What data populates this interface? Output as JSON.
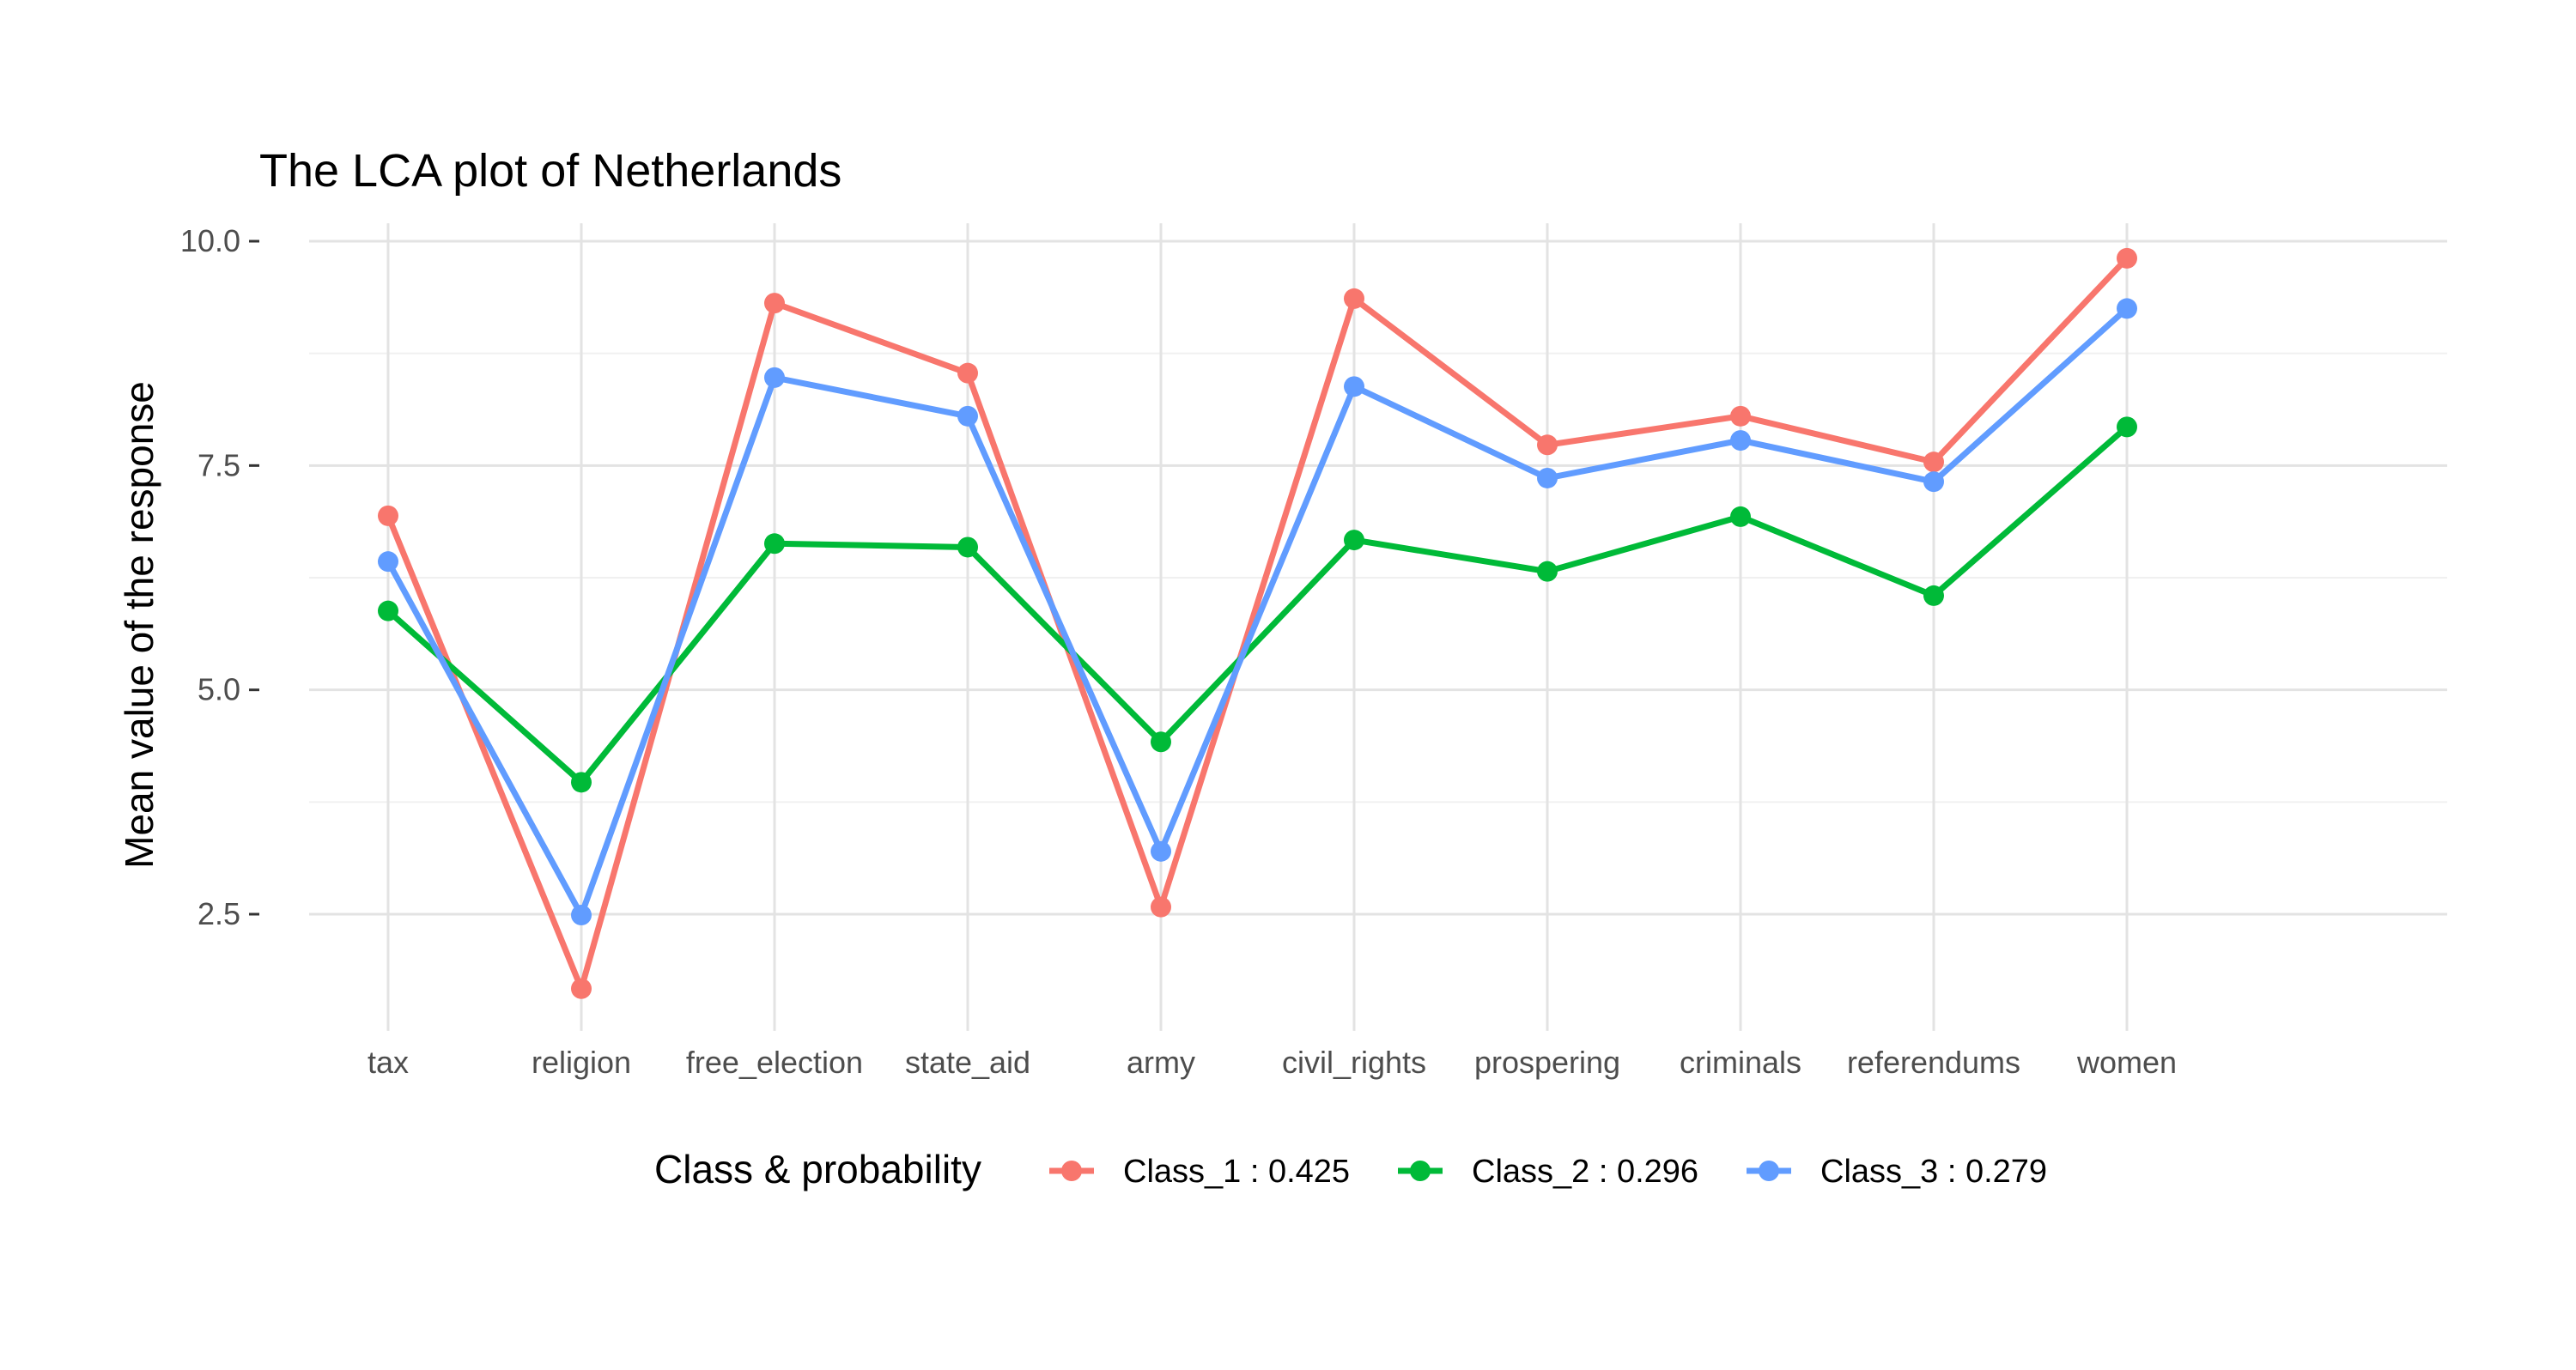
{
  "chart_data": {
    "type": "line",
    "title": "The LCA plot of Netherlands",
    "xlabel": "",
    "ylabel": "Mean value of the response",
    "categories": [
      "tax",
      "religion",
      "free_election",
      "state_aid",
      "army",
      "civil_rights",
      "prospering",
      "criminals",
      "referendums",
      "women"
    ],
    "y_ticks": [
      2.5,
      5.0,
      7.5,
      10.0
    ],
    "y_tick_labels": [
      "2.5",
      "5.0",
      "7.5",
      "10.0"
    ],
    "ylim": [
      1.2,
      10.2
    ],
    "grid": true,
    "legend": {
      "title": "Class & probability",
      "position": "bottom"
    },
    "series": [
      {
        "name": "Class_1 : 0.425",
        "color": "#F8766D",
        "values": [
          6.94,
          1.67,
          9.31,
          8.53,
          2.58,
          9.36,
          7.73,
          8.05,
          7.54,
          9.81
        ]
      },
      {
        "name": "Class_2 : 0.296",
        "color": "#00BA38",
        "values": [
          5.88,
          3.97,
          6.63,
          6.59,
          4.42,
          6.67,
          6.32,
          6.93,
          6.05,
          7.93
        ]
      },
      {
        "name": "Class_3 : 0.279",
        "color": "#619CFF",
        "values": [
          6.43,
          2.49,
          8.48,
          8.05,
          3.2,
          8.38,
          7.36,
          7.78,
          7.32,
          9.25
        ]
      }
    ]
  }
}
